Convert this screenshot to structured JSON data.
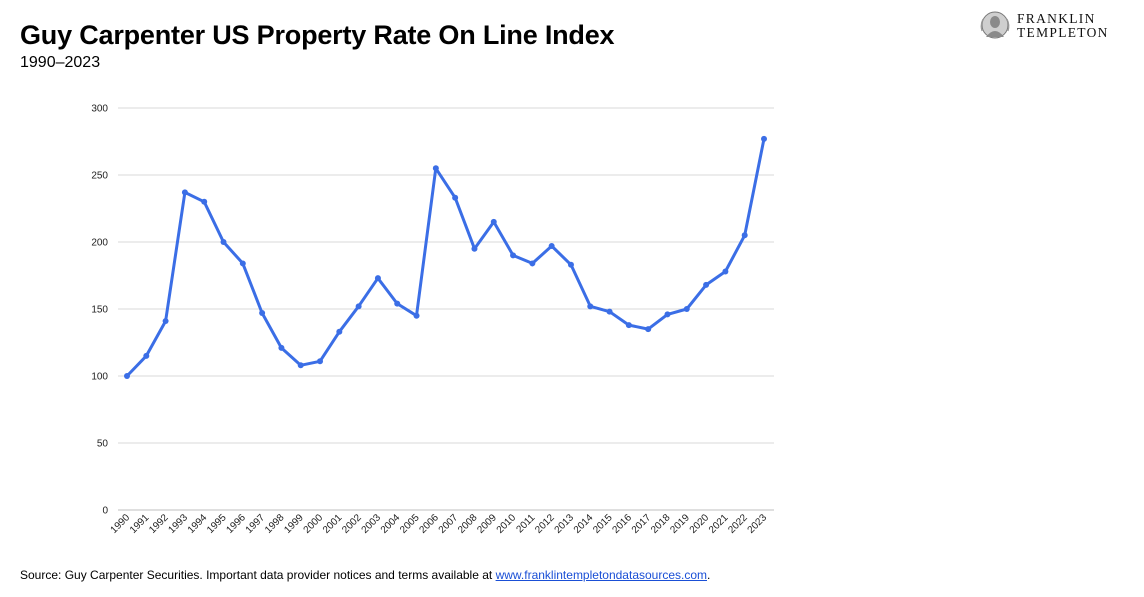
{
  "header": {
    "title": "Guy Carpenter US Property Rate On Line Index",
    "subtitle": "1990–2023"
  },
  "logo": {
    "line1": "FRANKLIN",
    "line2": "TEMPLETON"
  },
  "footer": {
    "source_prefix": "Source: Guy Carpenter Securities. Important data provider notices and terms available at ",
    "source_link": "www.franklintempletondatasources.com",
    "source_suffix": "."
  },
  "colors": {
    "line": "#3b6ee6",
    "grid": "#d9d9d9"
  },
  "chart_data": {
    "type": "line",
    "ylim": [
      0,
      300
    ],
    "yticks": [
      0,
      50,
      100,
      150,
      200,
      250,
      300
    ],
    "grid": true,
    "categories": [
      "1990",
      "1991",
      "1992",
      "1993",
      "1994",
      "1995",
      "1996",
      "1997",
      "1998",
      "1999",
      "2000",
      "2001",
      "2002",
      "2003",
      "2004",
      "2005",
      "2006",
      "2007",
      "2008",
      "2009",
      "2010",
      "2011",
      "2012",
      "2013",
      "2014",
      "2015",
      "2016",
      "2017",
      "2018",
      "2019",
      "2020",
      "2021",
      "2022",
      "2023"
    ],
    "series": [
      {
        "values": [
          100,
          115,
          141,
          237,
          230,
          200,
          184,
          147,
          121,
          108,
          111,
          133,
          152,
          173,
          154,
          145,
          255,
          233,
          195,
          215,
          190,
          184,
          197,
          183,
          152,
          148,
          138,
          135,
          146,
          150,
          168,
          178,
          205,
          277
        ]
      }
    ]
  }
}
